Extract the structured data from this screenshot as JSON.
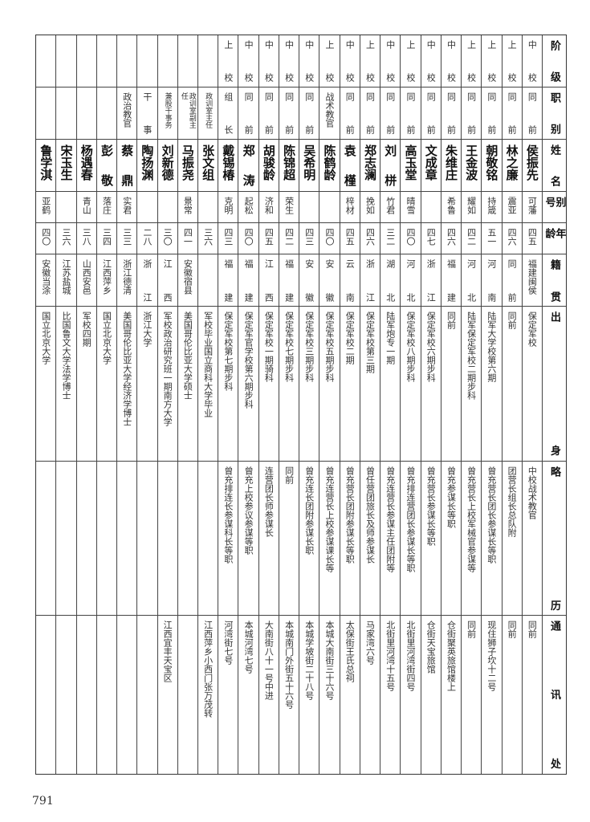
{
  "headers": [
    "阶级",
    "职别",
    "姓名",
    "别号",
    "年龄",
    "籍贯",
    "出身",
    "略历",
    "通讯处"
  ],
  "persons": [
    {
      "rank": "中校",
      "post": "同前",
      "name": "侯振先",
      "alias": "可藩",
      "age": "四五",
      "native": "福建闽侯",
      "education": "保定军校",
      "career": "中校战术教官",
      "address": "同前"
    },
    {
      "rank": "上校",
      "post": "同前",
      "name": "林之廉",
      "alias": "震亚",
      "age": "四六",
      "native": "同前",
      "education": "同前",
      "career": "团营长组长总队附",
      "address": "同前"
    },
    {
      "rank": "上校",
      "post": "同前",
      "name": "朝敬铭",
      "alias": "持箴",
      "age": "五一",
      "native": "河南",
      "education": "陆军大学校第六期",
      "career": "曾充营长团长参谋长等职",
      "address": "现住狮子坎十二号"
    },
    {
      "rank": "上校",
      "post": "同前",
      "name": "王金波",
      "alias": "耀如",
      "age": "四二",
      "native": "河北",
      "education": "陆军保定军校二期步科",
      "career": "曾充营长上校军械官参谋等",
      "address": "同前"
    },
    {
      "rank": "中校",
      "post": "同前",
      "name": "朱维庄",
      "alias": "希鲁",
      "age": "四六",
      "native": "福建",
      "education": "同前",
      "career": "曾充参谋长等职",
      "address": "仓街聚英旅馆楼上"
    },
    {
      "rank": "中校",
      "post": "同前",
      "name": "文成章",
      "alias": "",
      "age": "四七",
      "native": "浙江",
      "education": "保定军校六期步科",
      "career": "曾充营长参谋长等职",
      "address": "仓街天宝旅馆"
    },
    {
      "rank": "上校",
      "post": "同前",
      "name": "高玉堂",
      "alias": "晴雪",
      "age": "四〇",
      "native": "河北",
      "education": "保定军校八期步科",
      "career": "曾充排连营团长参谋长等职",
      "address": "北街里河湾街四号"
    },
    {
      "rank": "中校",
      "post": "同前",
      "name": "刘栟",
      "alias": "竹君",
      "age": "三二",
      "native": "湖北",
      "education": "陆军炮专一期",
      "career": "曾充连营长参谋主任团附等",
      "address": "北街里河湾十五号"
    },
    {
      "rank": "上校",
      "post": "同前",
      "name": "郑志澜",
      "alias": "挽如",
      "age": "四六",
      "native": "浙江",
      "education": "保定军校第三期",
      "career": "曾任营团旅长及师参谋长",
      "address": "马家湾六号"
    },
    {
      "rank": "中校",
      "post": "同前",
      "name": "袁槿",
      "alias": "梓材",
      "age": "四五",
      "native": "云南",
      "education": "保定军校二期",
      "career": "曾充营长团附参谋长等职",
      "address": "太保街王氏总祠"
    },
    {
      "rank": "上校",
      "post": "战术教官",
      "name": "陈鹤龄",
      "alias": "",
      "age": "四〇",
      "native": "安徽",
      "education": "保定军校五期步科",
      "career": "曾充连营长上校参谋课长等",
      "address": "本城大南街三十六号"
    },
    {
      "rank": "中校",
      "post": "同前",
      "name": "吴希明",
      "alias": "",
      "age": "四三",
      "native": "安徽",
      "education": "保定军校三期步科",
      "career": "曾充连长团附参谋长职",
      "address": "本城学坡街二十八号"
    },
    {
      "rank": "中校",
      "post": "同前",
      "name": "陈锦超",
      "alias": "荣生",
      "age": "四二",
      "native": "福建",
      "education": "保定军校七期步科",
      "career": "同前",
      "address": "本城南门外街五十六号"
    },
    {
      "rank": "中校",
      "post": "同前",
      "name": "胡骏龄",
      "alias": "济和",
      "age": "四五",
      "native": "江西",
      "education": "保定军校一期骑科",
      "career": "连营团长师参谋长",
      "address": "大南街八十一号中进"
    },
    {
      "rank": "中校",
      "post": "同前",
      "name": "郑涛",
      "alias": "起松",
      "age": "四〇",
      "native": "福建",
      "education": "保定军官学校第六期步科",
      "career": "曾充上校参议参谋等职",
      "address": "本城河湾七号"
    },
    {
      "rank": "上校",
      "post": "组长",
      "name": "戴锡椿",
      "alias": "克明",
      "age": "四三",
      "native": "福建",
      "education": "保定军校第七期步科",
      "career": "曾充排连长参谋科长等职",
      "address": "河湾街七号"
    },
    {
      "rank": "",
      "post": "政训室主任",
      "name": "张文组",
      "alias": "",
      "age": "三六",
      "native": "",
      "education": "军校毕业国立商科大学毕业",
      "career": "",
      "address": "江西萍乡小西门张万茂转"
    },
    {
      "rank": "",
      "post": "政训室副主任",
      "name": "马振尧",
      "alias": "景常",
      "age": "四一",
      "native": "安徽宿县",
      "education": "美国哥伦比亚大学硕士",
      "career": "",
      "address": ""
    },
    {
      "rank": "",
      "post": "兼股干事务",
      "name": "刘新德",
      "alias": "",
      "age": "三〇",
      "native": "江西",
      "education": "军校政治研究班一期南方大学",
      "career": "",
      "address": "江西宜丰天宝区"
    },
    {
      "rank": "",
      "post": "干事",
      "name": "陶扬渊",
      "alias": "",
      "age": "二八",
      "native": "浙江",
      "education": "浙江大学",
      "career": "",
      "address": ""
    },
    {
      "rank": "",
      "post": "政治教官",
      "name": "蔡鼎",
      "alias": "实君",
      "age": "三三",
      "native": "浙江德清",
      "education": "美国哥伦比亚大学经济学博士",
      "career": "",
      "address": ""
    },
    {
      "rank": "",
      "post": "",
      "name": "彭敬",
      "alias": "落庄",
      "age": "三四",
      "native": "江西萍乡",
      "education": "国立北京大学",
      "career": "",
      "address": ""
    },
    {
      "rank": "",
      "post": "",
      "name": "杨遇春",
      "alias": "青山",
      "age": "三八",
      "native": "山西安邑",
      "education": "军校四期",
      "career": "",
      "address": ""
    },
    {
      "rank": "",
      "post": "",
      "name": "宋玉生",
      "alias": "",
      "age": "三六",
      "native": "江苏盐城",
      "education": "比国鲁文大学法学博士",
      "career": "",
      "address": ""
    },
    {
      "rank": "",
      "post": "",
      "name": "鲁学淇",
      "alias": "亚鹤",
      "age": "四〇",
      "native": "安徽当涂",
      "education": "国立北京大学",
      "career": "",
      "address": ""
    }
  ],
  "page_number": "791"
}
